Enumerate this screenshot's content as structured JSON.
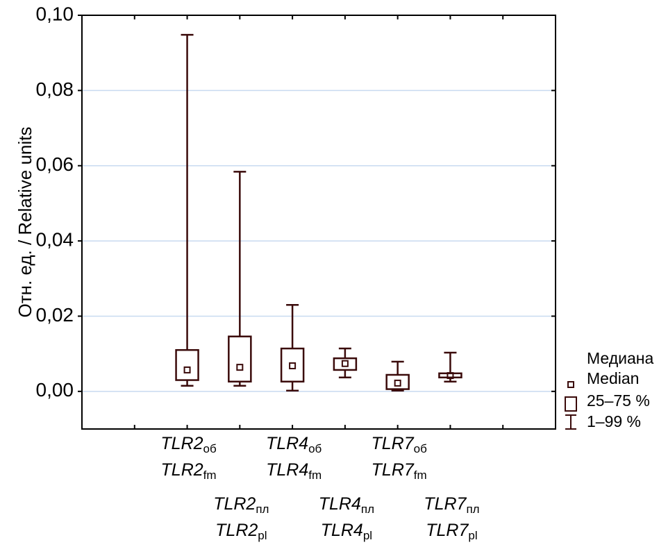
{
  "chart_data": {
    "type": "box",
    "ylabel": "Отн. ед. / Relative units",
    "ylim": [
      -0.01,
      0.1
    ],
    "yticks": [
      {
        "value": 0,
        "label": "0,00"
      },
      {
        "value": 0.02,
        "label": "0,02"
      },
      {
        "value": 0.04,
        "label": "0,04"
      },
      {
        "value": 0.06,
        "label": "0,06"
      },
      {
        "value": 0.08,
        "label": "0,08"
      },
      {
        "value": 0.1,
        "label": "0,10"
      }
    ],
    "grid": true,
    "color": "#3a0a0a",
    "categories": [
      {
        "ru": "TLR2",
        "ru_sub": "об",
        "en": "TLR2",
        "en_sub": "fm"
      },
      {
        "ru": "TLR2",
        "ru_sub": "пл",
        "en": "TLR2",
        "en_sub": "pl"
      },
      {
        "ru": "TLR4",
        "ru_sub": "об",
        "en": "TLR4",
        "en_sub": "fm"
      },
      {
        "ru": "TLR4",
        "ru_sub": "пл",
        "en": "TLR4",
        "en_sub": "pl"
      },
      {
        "ru": "TLR7",
        "ru_sub": "об",
        "en": "TLR7",
        "en_sub": "fm"
      },
      {
        "ru": "TLR7",
        "ru_sub": "пл",
        "en": "TLR7",
        "en_sub": "pl"
      }
    ],
    "boxes": [
      {
        "median": 0.0057,
        "q1": 0.003,
        "q3": 0.011,
        "low": 0.0015,
        "high": 0.0948
      },
      {
        "median": 0.0064,
        "q1": 0.0026,
        "q3": 0.0146,
        "low": 0.0015,
        "high": 0.0584
      },
      {
        "median": 0.0068,
        "q1": 0.0026,
        "q3": 0.0114,
        "low": 0.0002,
        "high": 0.023
      },
      {
        "median": 0.0074,
        "q1": 0.0057,
        "q3": 0.0088,
        "low": 0.0037,
        "high": 0.0114
      },
      {
        "median": 0.0022,
        "q1": 0.0006,
        "q3": 0.0044,
        "low": 0.0002,
        "high": 0.0079
      },
      {
        "median": 0.0042,
        "q1": 0.0037,
        "q3": 0.0048,
        "low": 0.0026,
        "high": 0.0103
      }
    ],
    "legend": {
      "median": [
        "Медиана",
        "Median"
      ],
      "box": "25–75 %",
      "whisker": "1–99 %"
    }
  }
}
